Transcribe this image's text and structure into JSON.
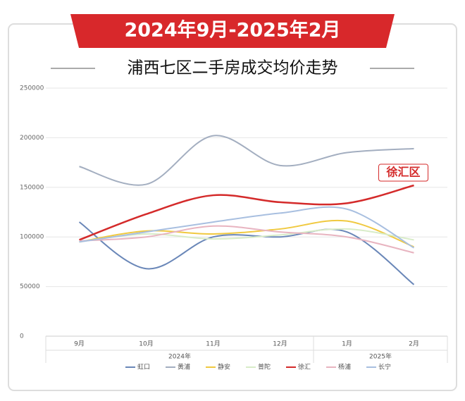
{
  "chart_data": {
    "type": "line",
    "title": "2024年9月-2025年2月",
    "subtitle": "浦西七区二手房成交均价走势",
    "annotation": {
      "text": "徐汇区",
      "series": "徐汇"
    },
    "categories": [
      "9月",
      "10月",
      "11月",
      "12月",
      "1月",
      "2月"
    ],
    "x_groups": [
      {
        "name": "2024年",
        "count": 4
      },
      {
        "name": "2025年",
        "count": 2
      }
    ],
    "ylim": [
      0,
      250000
    ],
    "yticks": [
      0,
      50000,
      100000,
      150000,
      200000,
      250000
    ],
    "grid": true,
    "legend": "bottom",
    "series": [
      {
        "name": "虹口",
        "color": "#6a87b8",
        "values": [
          115000,
          68000,
          100000,
          100000,
          105000,
          52000
        ]
      },
      {
        "name": "黄浦",
        "color": "#a3aec0",
        "values": [
          171000,
          153000,
          202000,
          172000,
          185000,
          189000
        ]
      },
      {
        "name": "静安",
        "color": "#f0c940",
        "values": [
          95000,
          106000,
          103000,
          108000,
          116000,
          90000
        ]
      },
      {
        "name": "普陀",
        "color": "#d8ecc8",
        "values": [
          95000,
          103000,
          98000,
          102000,
          108000,
          97000
        ]
      },
      {
        "name": "徐汇",
        "color": "#d42a2a",
        "values": [
          97000,
          123000,
          142000,
          135000,
          134000,
          152000
        ]
      },
      {
        "name": "杨浦",
        "color": "#e8b4c0",
        "values": [
          96000,
          100000,
          111000,
          105000,
          100000,
          84000
        ]
      },
      {
        "name": "长宁",
        "color": "#a8bfe0",
        "values": [
          95000,
          105000,
          115000,
          124000,
          128000,
          89000
        ]
      }
    ]
  }
}
